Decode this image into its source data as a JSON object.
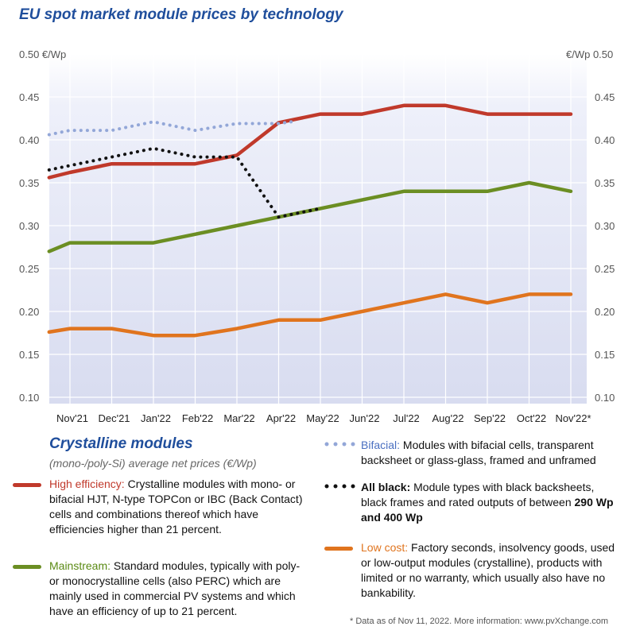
{
  "chart_data": {
    "type": "line",
    "title": "EU spot market module prices by technology",
    "ylabel_left": "€/Wp",
    "ylabel_right": "€/Wp",
    "ylim": [
      0.1,
      0.5
    ],
    "yticks": [
      "0.10",
      "0.15",
      "0.20",
      "0.25",
      "0.30",
      "0.35",
      "0.40",
      "0.45",
      "0.50"
    ],
    "categories": [
      "Nov'21",
      "Dec'21",
      "Jan'22",
      "Feb'22",
      "Mar'22",
      "Apr'22",
      "May'22",
      "Jun'22",
      "Jul'22",
      "Aug'22",
      "Sep'22",
      "Oct'22",
      "Nov'22*"
    ],
    "grid": true,
    "series": [
      {
        "name": "High efficiency",
        "color": "#c0392b",
        "style": "solid",
        "points": [
          [
            -0.5,
            0.356
          ],
          [
            0,
            0.362
          ],
          [
            1,
            0.372
          ],
          [
            2,
            0.372
          ],
          [
            3,
            0.372
          ],
          [
            4,
            0.382
          ],
          [
            5,
            0.42
          ],
          [
            6,
            0.43
          ],
          [
            7,
            0.43
          ],
          [
            8,
            0.44
          ],
          [
            9,
            0.44
          ],
          [
            10,
            0.43
          ],
          [
            11,
            0.43
          ],
          [
            12,
            0.43
          ]
        ]
      },
      {
        "name": "Mainstream",
        "color": "#6b8e23",
        "style": "solid",
        "points": [
          [
            -0.5,
            0.27
          ],
          [
            0,
            0.28
          ],
          [
            1,
            0.28
          ],
          [
            2,
            0.28
          ],
          [
            3,
            0.29
          ],
          [
            4,
            0.3
          ],
          [
            5,
            0.31
          ],
          [
            6,
            0.32
          ],
          [
            7,
            0.33
          ],
          [
            8,
            0.34
          ],
          [
            9,
            0.34
          ],
          [
            10,
            0.34
          ],
          [
            11,
            0.35
          ],
          [
            12,
            0.34
          ]
        ]
      },
      {
        "name": "Low cost",
        "color": "#e0741e",
        "style": "solid",
        "points": [
          [
            -0.5,
            0.176
          ],
          [
            0,
            0.18
          ],
          [
            1,
            0.18
          ],
          [
            2,
            0.172
          ],
          [
            3,
            0.172
          ],
          [
            4,
            0.18
          ],
          [
            5,
            0.19
          ],
          [
            6,
            0.19
          ],
          [
            7,
            0.2
          ],
          [
            8,
            0.21
          ],
          [
            9,
            0.22
          ],
          [
            10,
            0.21
          ],
          [
            11,
            0.22
          ],
          [
            12,
            0.22
          ]
        ]
      },
      {
        "name": "Bifacial",
        "color": "#93a7d8",
        "style": "dotted",
        "points": [
          [
            -0.5,
            0.406
          ],
          [
            0,
            0.411
          ],
          [
            1,
            0.411
          ],
          [
            2,
            0.421
          ],
          [
            3,
            0.411
          ],
          [
            4,
            0.419
          ],
          [
            5,
            0.419
          ],
          [
            5.3,
            0.421
          ]
        ]
      },
      {
        "name": "All black",
        "color": "#111111",
        "style": "dotted",
        "points": [
          [
            -0.5,
            0.365
          ],
          [
            0,
            0.37
          ],
          [
            1,
            0.38
          ],
          [
            2,
            0.39
          ],
          [
            3,
            0.38
          ],
          [
            4,
            0.38
          ],
          [
            5,
            0.31
          ],
          [
            6,
            0.32
          ]
        ]
      }
    ]
  },
  "legend": {
    "heading": "Crystalline modules",
    "subheading": "(mono-/poly-Si) average net prices (€/Wp)",
    "items": [
      {
        "name": "High efficiency:",
        "text": " Crystalline modules with mono- or bifacial HJT, N-type TOPCon or IBC (Back Contact) cells and combinations thereof which have efficiencies higher than 21 percent."
      },
      {
        "name": "Mainstream:",
        "text": " Standard modules, typically with poly- or monocrystalline cells (also PERC) which are mainly used in commercial PV systems and which have an efficiency of up to 21 percent."
      },
      {
        "name": "Bifacial:",
        "text": " Modules with bifacial cells, transparent backsheet or glass-glass, framed and unframed"
      },
      {
        "name": "All black:",
        "text": " Module types with black backsheets, black frames and rated outputs of between ",
        "emph": "290 Wp and 400 Wp"
      },
      {
        "name": "Low cost:",
        "text": " Factory seconds, insolvency goods, used or low-output modules (crystalline), products with limited or no warranty, which usually also have no bankability."
      }
    ],
    "footnote": "* Data as of Nov 11, 2022. More information: www.pvXchange.com"
  }
}
